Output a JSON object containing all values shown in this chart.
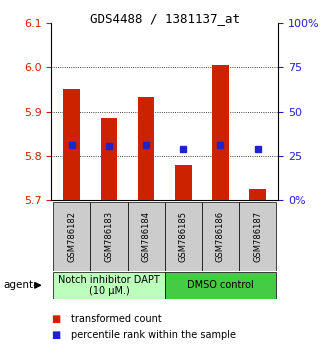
{
  "title": "GDS4488 / 1381137_at",
  "samples": [
    "GSM786182",
    "GSM786183",
    "GSM786184",
    "GSM786185",
    "GSM786186",
    "GSM786187"
  ],
  "bar_tops": [
    5.95,
    5.885,
    5.932,
    5.778,
    6.005,
    5.725
  ],
  "bar_bottom": 5.7,
  "blue_markers": [
    5.825,
    5.822,
    5.825,
    5.815,
    5.825,
    5.815
  ],
  "ylim": [
    5.7,
    6.1
  ],
  "yticks_left": [
    5.7,
    5.8,
    5.9,
    6.0,
    6.1
  ],
  "yticks_right": [
    0,
    25,
    50,
    75,
    100
  ],
  "bar_color": "#cc2200",
  "blue_color": "#2222cc",
  "group1_label": "Notch inhibitor DAPT\n(10 μM.)",
  "group2_label": "DMSO control",
  "group1_bg": "#bbffbb",
  "group2_bg": "#44cc44",
  "sample_bg": "#cccccc",
  "legend_red_label": "transformed count",
  "legend_blue_label": "percentile rank within the sample",
  "agent_label": "agent",
  "title_fontsize": 9,
  "tick_fontsize": 8,
  "sample_fontsize": 6,
  "group_fontsize": 7,
  "legend_fontsize": 7
}
